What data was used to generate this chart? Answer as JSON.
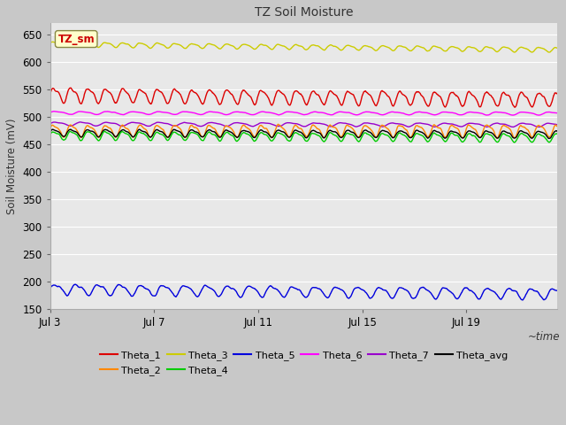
{
  "title": "TZ Soil Moisture",
  "ylabel": "Soil Moisture (mV)",
  "xlabel": "~time",
  "xlim_days": [
    0,
    19.5
  ],
  "ylim": [
    150,
    670
  ],
  "yticks": [
    150,
    200,
    250,
    300,
    350,
    400,
    450,
    500,
    550,
    600,
    650
  ],
  "xtick_labels": [
    "Jul 3",
    "Jul 7",
    "Jul 11",
    "Jul 15",
    "Jul 19"
  ],
  "xtick_positions": [
    0,
    4,
    8,
    12,
    16
  ],
  "background_color": "#c8c8c8",
  "axes_background": "#e8e8e8",
  "grid_color": "#ffffff",
  "label_box_text": "TZ_sm",
  "label_box_bg": "#ffffcc",
  "label_box_edge": "#888844",
  "label_box_fc": "#cc0000",
  "series": {
    "Theta_1": {
      "color": "#dd0000",
      "base": 540,
      "amp": 12,
      "freq_day": 1.5,
      "trend": -8
    },
    "Theta_2": {
      "color": "#ff8800",
      "base": 475,
      "amp": 10,
      "freq_day": 1.5,
      "trend": 0
    },
    "Theta_3": {
      "color": "#cccc00",
      "base": 632,
      "amp": 4,
      "freq_day": 1.5,
      "trend": -10
    },
    "Theta_4": {
      "color": "#00cc00",
      "base": 466,
      "amp": 7,
      "freq_day": 1.5,
      "trend": -4
    },
    "Theta_5": {
      "color": "#0000dd",
      "base": 186,
      "amp": 9,
      "freq_day": 1.2,
      "trend": -8
    },
    "Theta_6": {
      "color": "#ff00ff",
      "base": 507,
      "amp": 2.5,
      "freq_day": 1.0,
      "trend": -1
    },
    "Theta_7": {
      "color": "#9900cc",
      "base": 487,
      "amp": 3,
      "freq_day": 1.0,
      "trend": -2
    },
    "Theta_avg": {
      "color": "#000000",
      "base": 471,
      "amp": 6,
      "freq_day": 1.5,
      "trend": -3
    }
  },
  "legend_order": [
    "Theta_1",
    "Theta_2",
    "Theta_3",
    "Theta_4",
    "Theta_5",
    "Theta_6",
    "Theta_7",
    "Theta_avg"
  ],
  "legend_colors": [
    "#dd0000",
    "#ff8800",
    "#cccc00",
    "#00cc00",
    "#0000dd",
    "#ff00ff",
    "#9900cc",
    "#000000"
  ]
}
